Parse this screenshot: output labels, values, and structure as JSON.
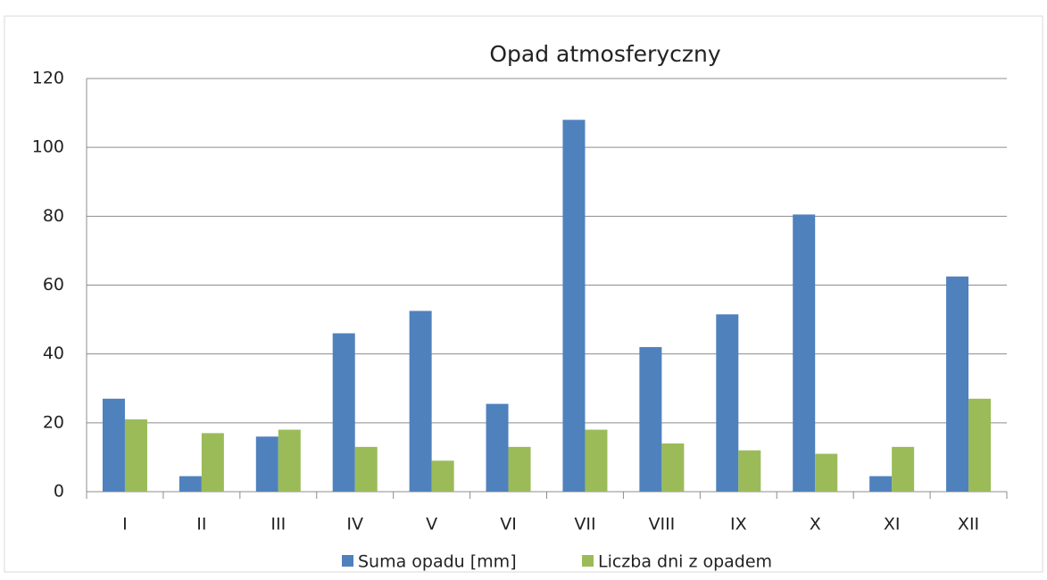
{
  "chart_data": {
    "type": "bar",
    "title": "Opad atmosferyczny",
    "categories": [
      "I",
      "II",
      "III",
      "IV",
      "V",
      "VI",
      "VII",
      "VIII",
      "IX",
      "X",
      "XI",
      "XII"
    ],
    "series": [
      {
        "name": "Suma opadu [mm]",
        "color": "#4f81bd",
        "values": [
          27,
          4.5,
          16,
          46,
          52.5,
          25.5,
          108,
          42,
          51.5,
          80.5,
          4.5,
          62.5
        ]
      },
      {
        "name": "Liczba dni z opadem",
        "color": "#9bbb59",
        "values": [
          21,
          17,
          18,
          13,
          9,
          13,
          18,
          14,
          12,
          11,
          13,
          27
        ]
      }
    ],
    "ylim": [
      0,
      120
    ],
    "yticks": [
      0,
      20,
      40,
      60,
      80,
      100,
      120
    ],
    "grid": true,
    "legend": "bottom"
  }
}
